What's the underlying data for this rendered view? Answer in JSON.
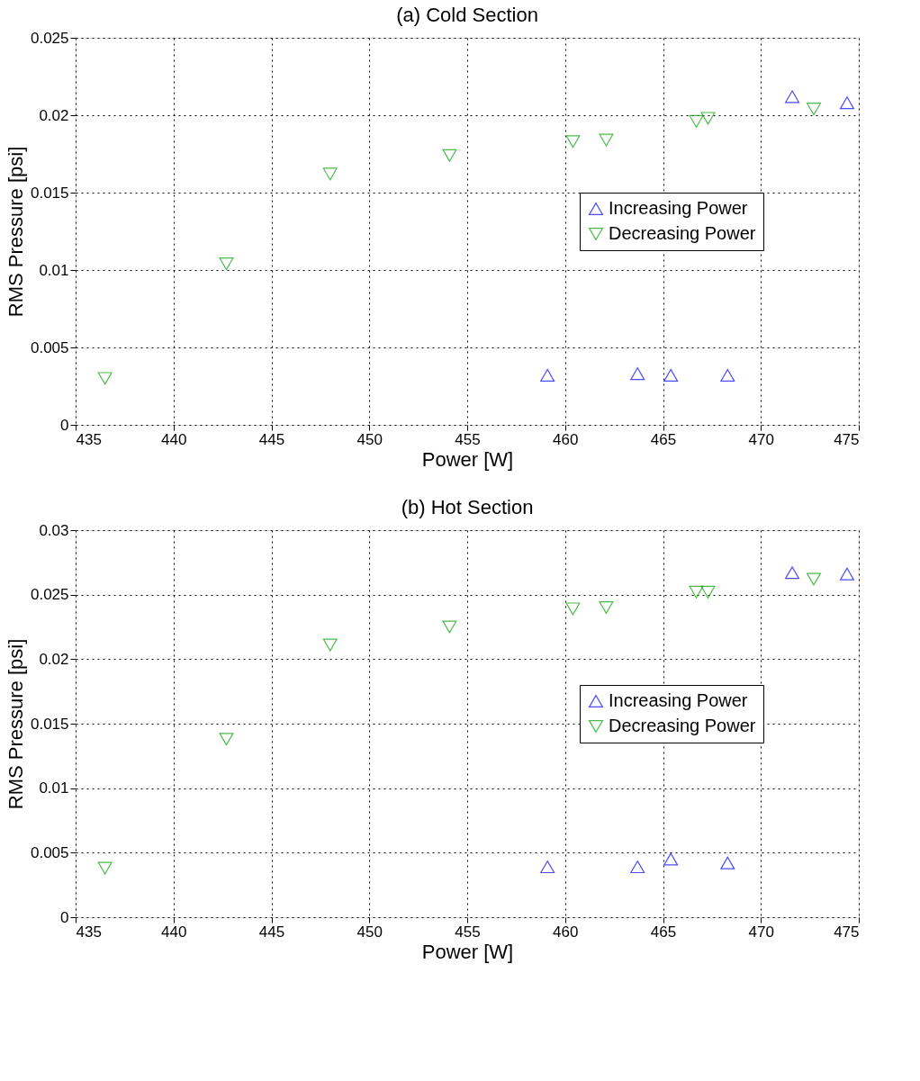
{
  "chart_data": [
    {
      "type": "scatter",
      "title": "(a) Cold Section",
      "xlabel": "Power [W]",
      "ylabel": "RMS Pressure [psi]",
      "xlim": [
        435,
        475
      ],
      "xticks": [
        435,
        440,
        445,
        450,
        455,
        460,
        465,
        470,
        475
      ],
      "ylim": [
        0,
        0.025
      ],
      "yticks": [
        0,
        0.005,
        0.01,
        0.015,
        0.02,
        0.025
      ],
      "grid": true,
      "legend": "right",
      "series": [
        {
          "name": "Increasing Power",
          "color": "#0000ff",
          "marker": "triangle-up",
          "x": [
            459.1,
            463.7,
            465.4,
            468.3,
            471.6,
            474.4
          ],
          "values": [
            0.0032,
            0.0033,
            0.0032,
            0.0032,
            0.0212,
            0.0208
          ]
        },
        {
          "name": "Decreasing Power",
          "color": "#00a000",
          "marker": "triangle-down",
          "x": [
            436.5,
            442.7,
            448.0,
            454.1,
            460.4,
            462.1,
            466.7,
            467.3,
            472.7
          ],
          "values": [
            0.003,
            0.0104,
            0.0162,
            0.0174,
            0.0183,
            0.0184,
            0.0196,
            0.0198,
            0.0204
          ]
        }
      ]
    },
    {
      "type": "scatter",
      "title": "(b) Hot Section",
      "xlabel": "Power [W]",
      "ylabel": "RMS Pressure [psi]",
      "xlim": [
        435,
        475
      ],
      "xticks": [
        435,
        440,
        445,
        450,
        455,
        460,
        465,
        470,
        475
      ],
      "ylim": [
        0,
        0.03
      ],
      "yticks": [
        0,
        0.005,
        0.01,
        0.015,
        0.02,
        0.025,
        0.03
      ],
      "grid": true,
      "legend": "right",
      "series": [
        {
          "name": "Increasing Power",
          "color": "#0000ff",
          "marker": "triangle-up",
          "x": [
            459.1,
            463.7,
            465.4,
            468.3,
            471.6,
            474.4
          ],
          "values": [
            0.0039,
            0.0039,
            0.0045,
            0.0042,
            0.0267,
            0.0266
          ]
        },
        {
          "name": "Decreasing Power",
          "color": "#00a000",
          "marker": "triangle-down",
          "x": [
            436.5,
            442.7,
            448.0,
            454.1,
            460.4,
            462.1,
            466.7,
            467.3,
            472.7
          ],
          "values": [
            0.0038,
            0.0138,
            0.0211,
            0.0225,
            0.0239,
            0.024,
            0.0252,
            0.0252,
            0.0262
          ]
        }
      ]
    }
  ]
}
